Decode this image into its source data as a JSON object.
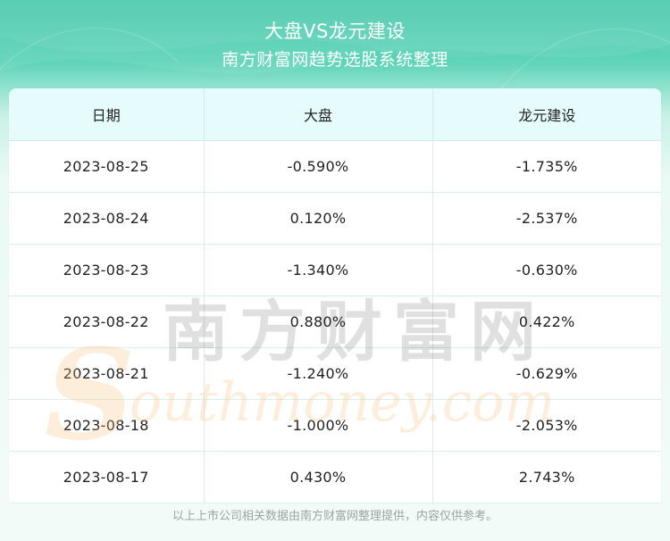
{
  "header": {
    "title": "大盘VS龙元建设",
    "subtitle": "南方财富网趋势选股系统整理"
  },
  "table": {
    "columns": [
      "日期",
      "大盘",
      "龙元建设"
    ],
    "rows": [
      [
        "2023-08-25",
        "-0.590%",
        "-1.735%"
      ],
      [
        "2023-08-24",
        "0.120%",
        "-2.537%"
      ],
      [
        "2023-08-23",
        "-1.340%",
        "-0.630%"
      ],
      [
        "2023-08-22",
        "0.880%",
        "0.422%"
      ],
      [
        "2023-08-21",
        "-1.240%",
        "-0.629%"
      ],
      [
        "2023-08-18",
        "-1.000%",
        "-2.053%"
      ],
      [
        "2023-08-17",
        "0.430%",
        "2.743%"
      ]
    ]
  },
  "watermark": {
    "cn": "南方财富网",
    "en": "outhmoney.com"
  },
  "footer": "以上上市公司相关数据由南方财富网整理提供，内容仅供参考。"
}
